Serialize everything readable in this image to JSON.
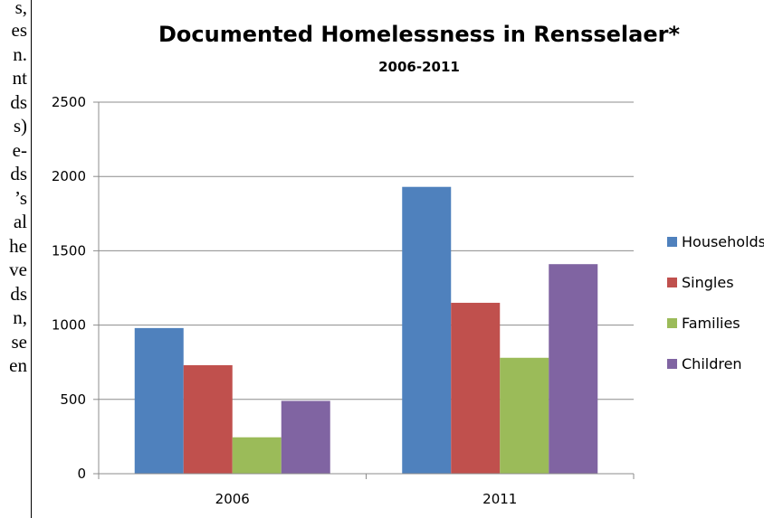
{
  "left_text_fragments": [
    "s,",
    "es",
    "n.",
    "nt",
    "ds",
    "s)",
    "e-",
    "ds",
    "’s",
    "al",
    "he",
    "ve",
    "ds",
    "n,",
    "se",
    "en"
  ],
  "chart_data": {
    "type": "bar",
    "title": "Documented Homelessness in Rensselaer*",
    "subtitle": "2006-2011",
    "xlabel": "",
    "ylabel": "",
    "categories": [
      "2006",
      "2011"
    ],
    "ylim": [
      0,
      2500
    ],
    "yticks": [
      "0",
      "500",
      "1000",
      "1500",
      "2000",
      "2500"
    ],
    "grid": true,
    "legend_position": "right",
    "series": [
      {
        "name": "Households",
        "values": [
          980,
          1930
        ],
        "color": "#4f81bd"
      },
      {
        "name": "Singles",
        "values": [
          730,
          1150
        ],
        "color": "#c0504d"
      },
      {
        "name": "Families",
        "values": [
          245,
          780
        ],
        "color": "#9bbb59"
      },
      {
        "name": "Children",
        "values": [
          490,
          1410
        ],
        "color": "#8064a2"
      }
    ]
  }
}
